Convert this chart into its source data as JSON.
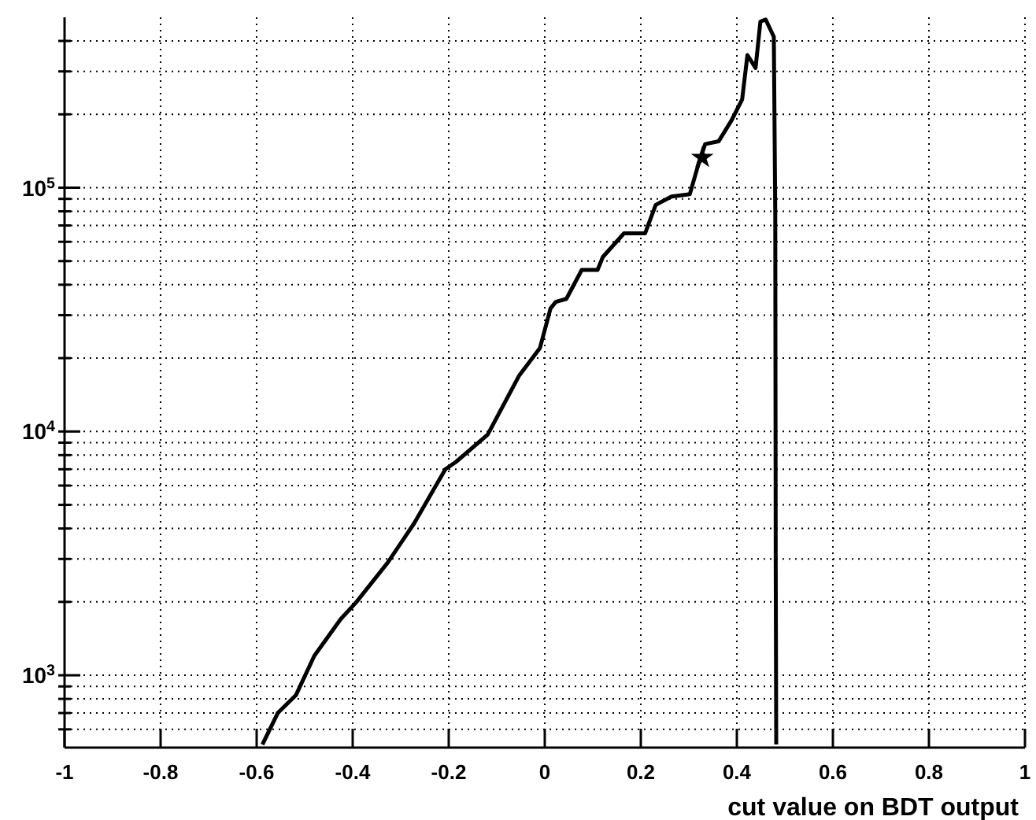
{
  "chart_data": {
    "type": "line",
    "xlabel": "cut value on BDT output",
    "xlim": [
      -1,
      1
    ],
    "xticks": [
      -1,
      -0.8,
      -0.6,
      -0.4,
      -0.2,
      0,
      0.2,
      0.4,
      0.6,
      0.8,
      1
    ],
    "ylim": [
      505,
      500000
    ],
    "log": true,
    "yticks": [
      {
        "value": 600,
        "label": null
      },
      {
        "value": 700,
        "label": null
      },
      {
        "value": 800,
        "label": null
      },
      {
        "value": 900,
        "label": null
      },
      {
        "value": 1000,
        "label": "10$^{3}$"
      },
      {
        "value": 2000,
        "label": null
      },
      {
        "value": 3000,
        "label": null
      },
      {
        "value": 4000,
        "label": null
      },
      {
        "value": 5000,
        "label": null
      },
      {
        "value": 6000,
        "label": null
      },
      {
        "value": 7000,
        "label": null
      },
      {
        "value": 8000,
        "label": null
      },
      {
        "value": 9000,
        "label": null
      },
      {
        "value": 10000,
        "label": "10$^{4}$"
      },
      {
        "value": 20000,
        "label": null
      },
      {
        "value": 30000,
        "label": null
      },
      {
        "value": 40000,
        "label": null
      },
      {
        "value": 50000,
        "label": null
      },
      {
        "value": 60000,
        "label": null
      },
      {
        "value": 70000,
        "label": null
      },
      {
        "value": 80000,
        "label": null
      },
      {
        "value": 90000,
        "label": null
      },
      {
        "value": 100000,
        "label": "10$^{5}$"
      },
      {
        "value": 200000,
        "label": null
      },
      {
        "value": 300000,
        "label": null
      },
      {
        "value": 400000,
        "label": null
      }
    ],
    "grid": true,
    "series": [
      {
        "color": "#000000",
        "marker": "none",
        "line_style": "solid",
        "x": [
          -0.588,
          -0.556,
          -0.518,
          -0.48,
          -0.425,
          -0.392,
          -0.327,
          -0.272,
          -0.207,
          -0.185,
          -0.119,
          -0.053,
          -0.01,
          0.012,
          0.023,
          0.045,
          0.077,
          0.11,
          0.121,
          0.165,
          0.209,
          0.231,
          0.264,
          0.302,
          0.318,
          0.334,
          0.362,
          0.389,
          0.411,
          0.422,
          0.439,
          0.449,
          0.46,
          0.477,
          0.48,
          0.481,
          0.482
        ],
        "values": [
          520,
          700,
          830,
          1200,
          1700,
          2000,
          2900,
          4200,
          7000,
          7500,
          9700,
          17000,
          22000,
          32000,
          34000,
          35000,
          46000,
          46000,
          52000,
          65000,
          65000,
          85000,
          92000,
          94000,
          121000,
          151000,
          155000,
          189000,
          230000,
          350000,
          310000,
          480000,
          490000,
          416000,
          77000,
          2700,
          520
        ]
      },
      {
        "type": "scatter",
        "color": "#000000",
        "marker": "star",
        "x": [
          0.328
        ],
        "values": [
          133000
        ]
      }
    ]
  }
}
